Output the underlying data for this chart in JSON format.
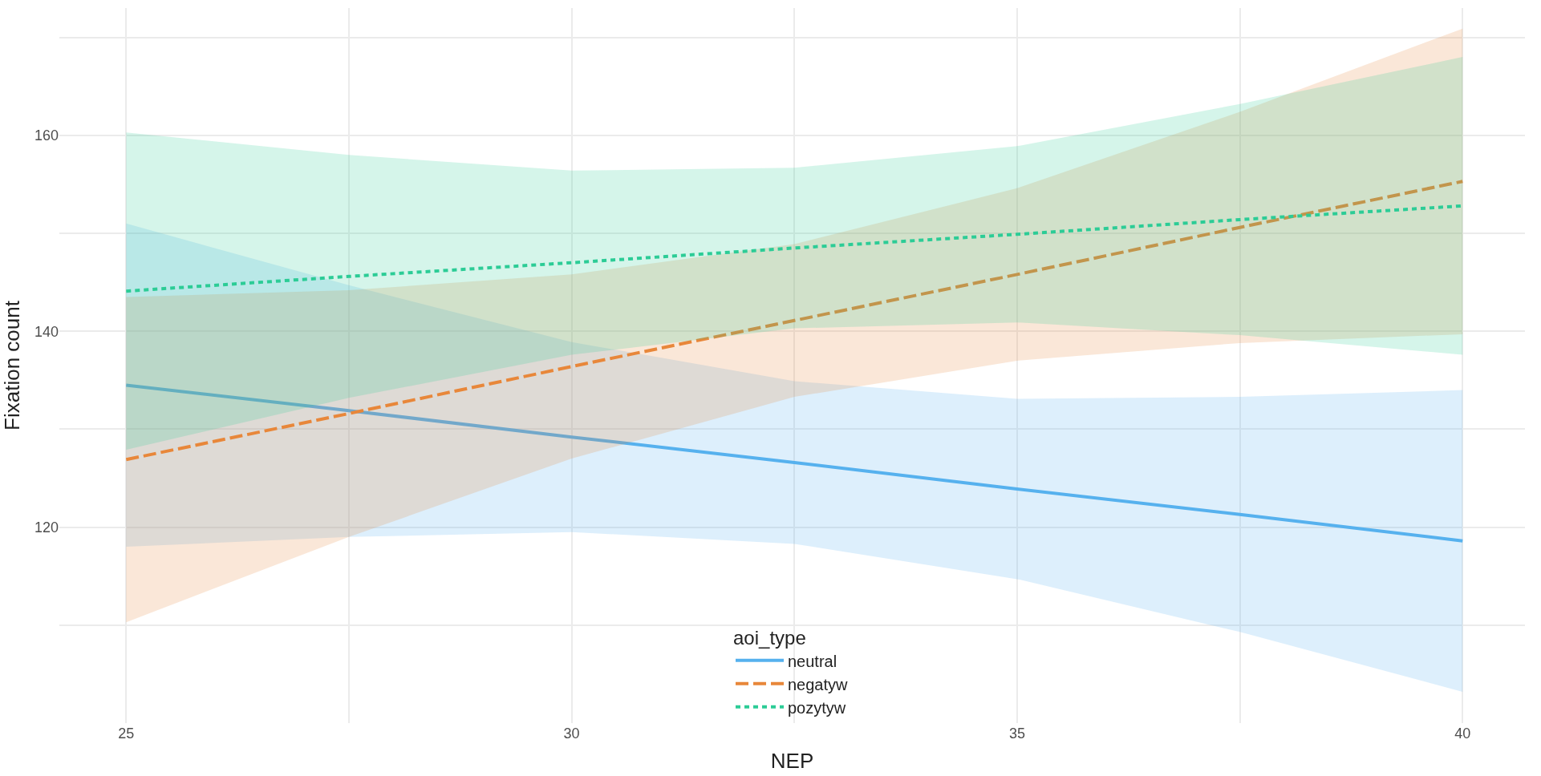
{
  "chart_data": {
    "type": "line",
    "xlabel": "NEP",
    "ylabel": "Fixation count",
    "legend_title": "aoi_type",
    "x": [
      25,
      27.5,
      30,
      32.5,
      35,
      37.5,
      40
    ],
    "series": [
      {
        "name": "neutral",
        "color": "#56b1ee",
        "line_style": "solid",
        "values": [
          134.5,
          131.9,
          129.2,
          126.6,
          123.9,
          121.3,
          118.6
        ],
        "lower": [
          118.0,
          119.0,
          119.5,
          118.3,
          114.7,
          109.3,
          103.2
        ],
        "upper": [
          151.0,
          144.7,
          138.9,
          134.9,
          133.1,
          133.3,
          134.0
        ]
      },
      {
        "name": "negatyw",
        "color": "#e8873a",
        "line_style": "dashed",
        "values": [
          126.9,
          131.6,
          136.4,
          141.1,
          145.8,
          150.6,
          155.3
        ],
        "lower": [
          110.3,
          119.0,
          127.0,
          133.3,
          137.0,
          138.8,
          139.7
        ],
        "upper": [
          143.5,
          144.2,
          145.8,
          148.9,
          154.6,
          162.4,
          170.9
        ]
      },
      {
        "name": "pozytyw",
        "color": "#2ccc96",
        "line_style": "dotted",
        "values": [
          144.1,
          145.6,
          147.0,
          148.5,
          149.9,
          151.4,
          152.8
        ],
        "lower": [
          127.9,
          133.2,
          137.6,
          140.3,
          140.9,
          139.6,
          137.6
        ],
        "upper": [
          160.3,
          158.0,
          156.4,
          156.7,
          158.9,
          163.2,
          168.0
        ]
      }
    ],
    "xlim": [
      24.25,
      40.7
    ],
    "ylim": [
      100,
      173
    ],
    "xticks": [
      25,
      {
        "value": 27.5,
        "label": null
      },
      30,
      {
        "value": 32.5,
        "label": null
      },
      35,
      {
        "value": 37.5,
        "label": null
      },
      40
    ],
    "yticks": [
      {
        "value": 110,
        "label": null
      },
      120,
      {
        "value": 130,
        "label": null
      },
      140,
      {
        "value": 150,
        "label": null
      },
      160,
      {
        "value": 170,
        "label": null
      }
    ],
    "grid": true,
    "legend": "bottom",
    "marker": "none"
  }
}
